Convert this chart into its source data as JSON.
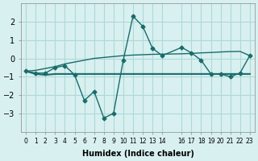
{
  "xlabel": "Humidex (Indice chaleur)",
  "x_values": [
    0,
    1,
    2,
    3,
    4,
    5,
    6,
    7,
    8,
    9,
    10,
    11,
    12,
    13,
    14,
    16,
    17,
    18,
    19,
    20,
    21,
    22,
    23
  ],
  "line1_y": [
    -0.7,
    -0.8,
    -0.8,
    -0.5,
    -0.4,
    -0.9,
    -2.3,
    -1.8,
    -3.25,
    -3.0,
    -0.1,
    2.3,
    1.75,
    0.55,
    0.15,
    0.6,
    0.3,
    -0.1,
    -0.85,
    -0.85,
    -1.0,
    -0.8,
    0.15
  ],
  "line2_y": [
    -0.7,
    -0.85,
    -0.9,
    -0.85,
    -0.85,
    -0.85,
    -0.85,
    -0.85,
    -0.85,
    -0.85,
    -0.85,
    -0.85,
    -0.85,
    -0.85,
    -0.85,
    -0.85,
    -0.85,
    -0.85,
    -0.85,
    -0.85,
    -0.85,
    -0.85,
    -0.85
  ],
  "line3_y": [
    -0.7,
    -0.65,
    -0.55,
    -0.45,
    -0.3,
    -0.2,
    -0.1,
    0.0,
    0.05,
    0.1,
    0.15,
    0.18,
    0.2,
    0.22,
    0.23,
    0.25,
    0.27,
    0.3,
    0.32,
    0.35,
    0.37,
    0.38,
    0.15
  ],
  "line_color": "#1a6b6b",
  "bg_color": "#d8f0f0",
  "grid_color": "#b0d8d8",
  "ylim": [
    -4,
    3
  ],
  "yticks": [
    -3,
    -2,
    -1,
    0,
    1,
    2
  ],
  "xtick_positions": [
    0,
    1,
    2,
    3,
    4,
    5,
    6,
    7,
    8,
    9,
    10,
    11,
    12,
    13,
    14,
    16,
    17,
    18,
    19,
    20,
    21,
    22,
    23
  ],
  "xtick_labels": [
    "0",
    "1",
    "2",
    "3",
    "4",
    "5",
    "6",
    "7",
    "8",
    "9",
    "10",
    "11",
    "12",
    "13",
    "14",
    "16",
    "17",
    "18",
    "19",
    "20",
    "21",
    "22",
    "23"
  ],
  "figsize": [
    3.2,
    2.0
  ],
  "dpi": 100
}
